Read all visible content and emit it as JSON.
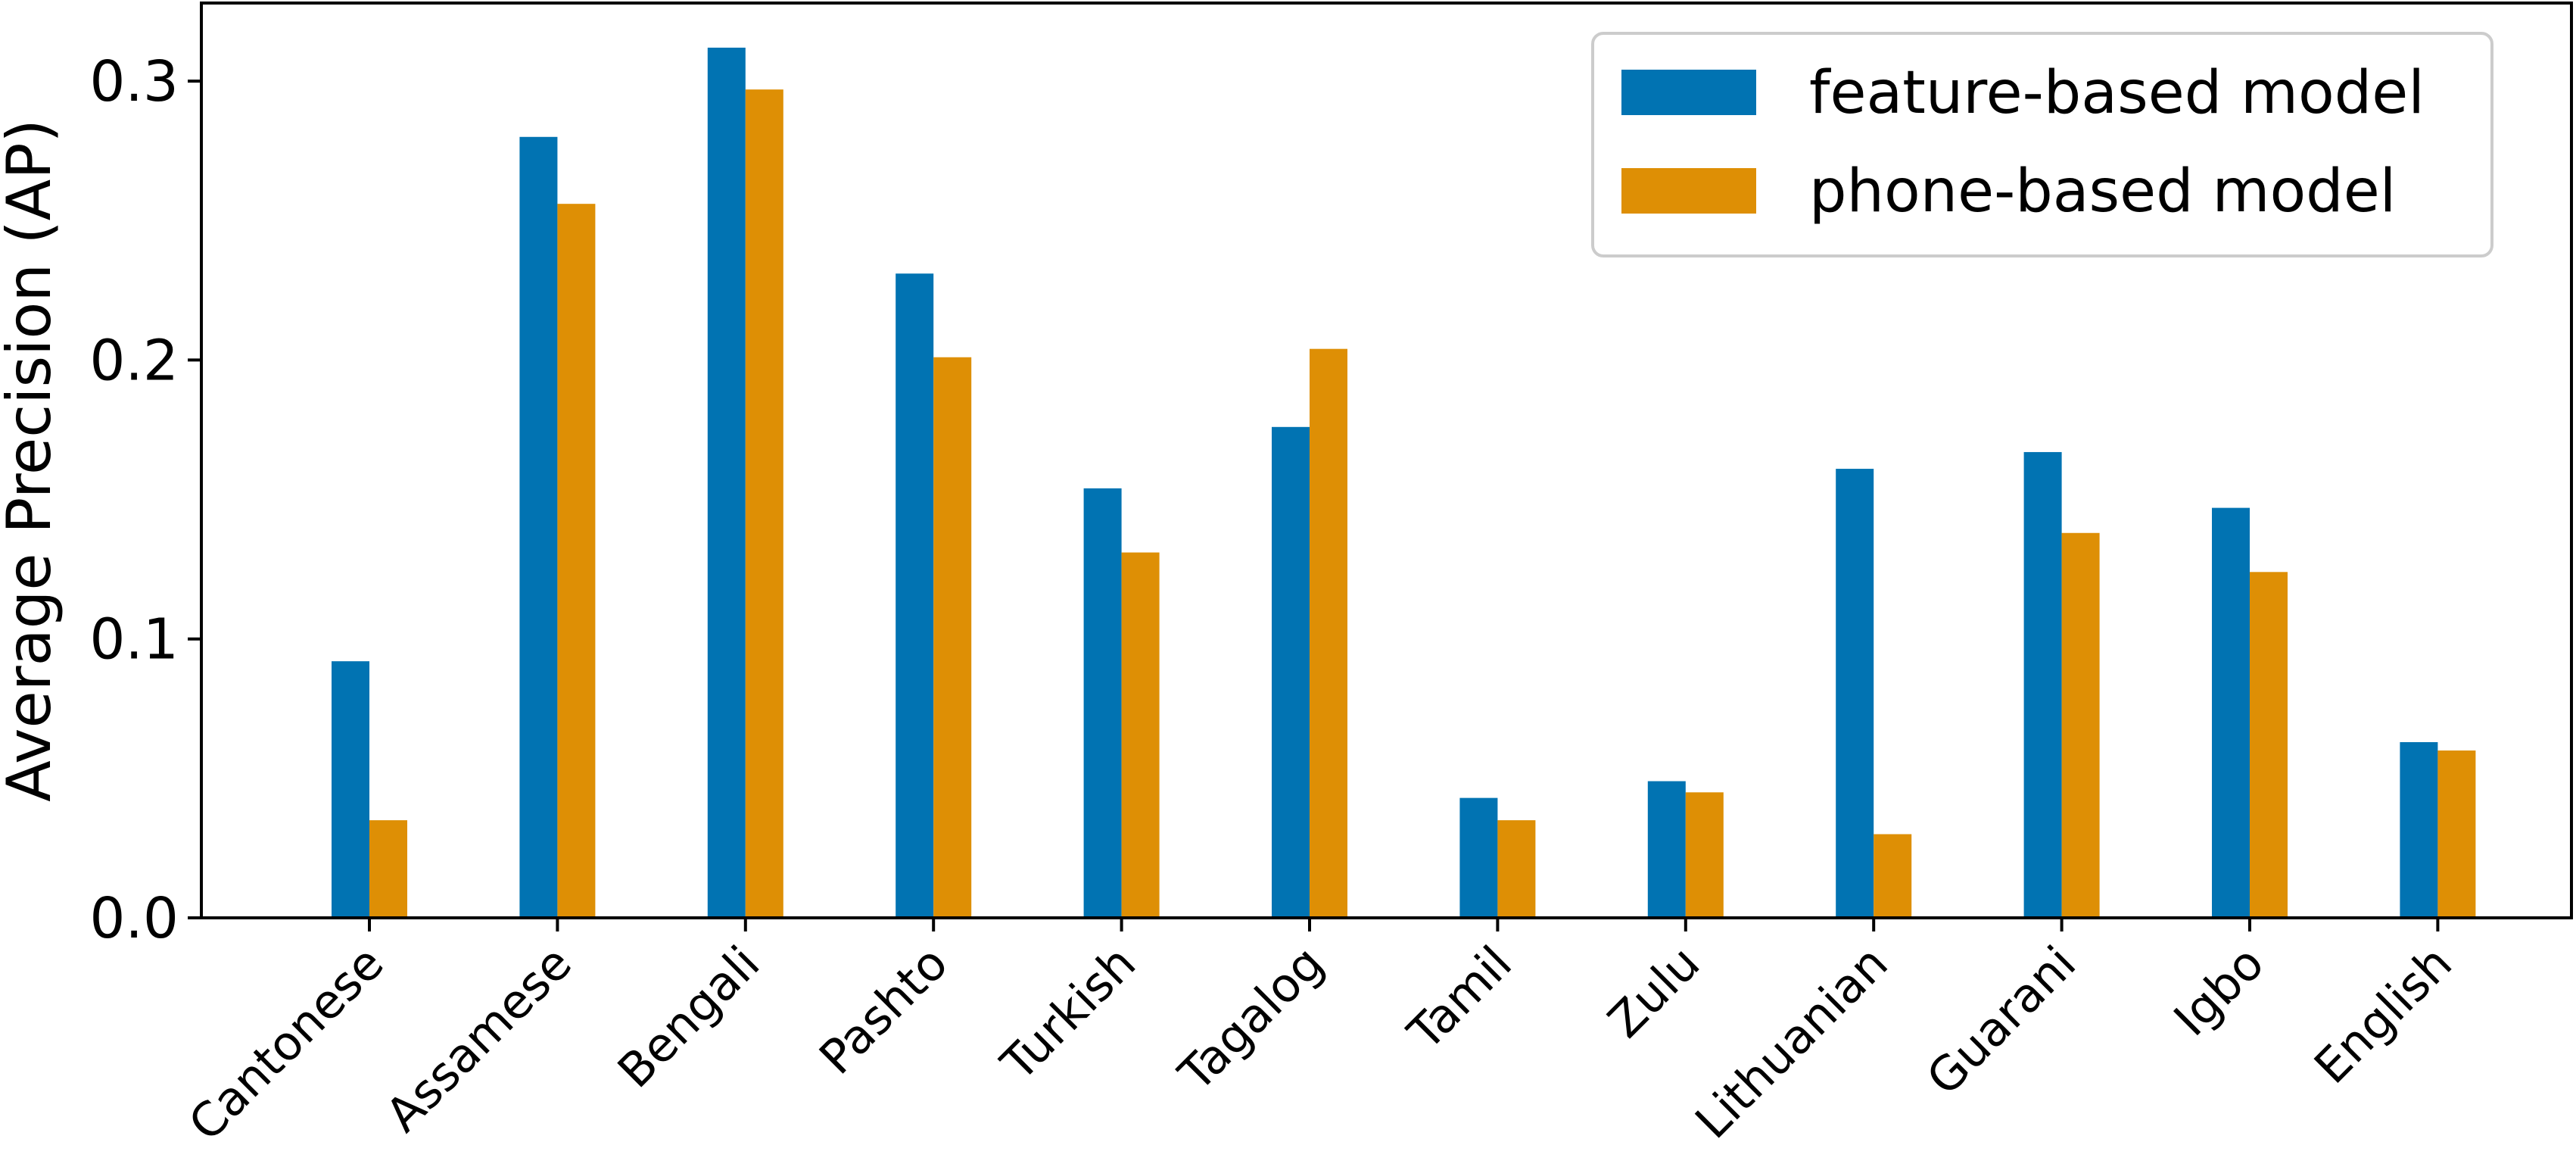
{
  "chart_data": {
    "type": "bar",
    "ylabel": "Average Precision (AP)",
    "xlabel": "",
    "ylim": [
      0,
      0.328
    ],
    "yticks": [
      0.0,
      0.1,
      0.2,
      0.3
    ],
    "ytick_labels": [
      "0.0",
      "0.1",
      "0.2",
      "0.3"
    ],
    "categories": [
      "Cantonese",
      "Assamese",
      "Bengali",
      "Pashto",
      "Turkish",
      "Tagalog",
      "Tamil",
      "Zulu",
      "Lithuanian",
      "Guarani",
      "Igbo",
      "English"
    ],
    "series": [
      {
        "name": "feature-based model",
        "color": "#0173b2",
        "values": [
          0.092,
          0.28,
          0.312,
          0.231,
          0.154,
          0.176,
          0.043,
          0.049,
          0.161,
          0.167,
          0.147,
          0.063
        ]
      },
      {
        "name": "phone-based model",
        "color": "#de8f05",
        "values": [
          0.035,
          0.256,
          0.297,
          0.201,
          0.131,
          0.204,
          0.035,
          0.045,
          0.03,
          0.138,
          0.124,
          0.06
        ]
      }
    ],
    "grid": false,
    "legend_position": "top-right"
  }
}
